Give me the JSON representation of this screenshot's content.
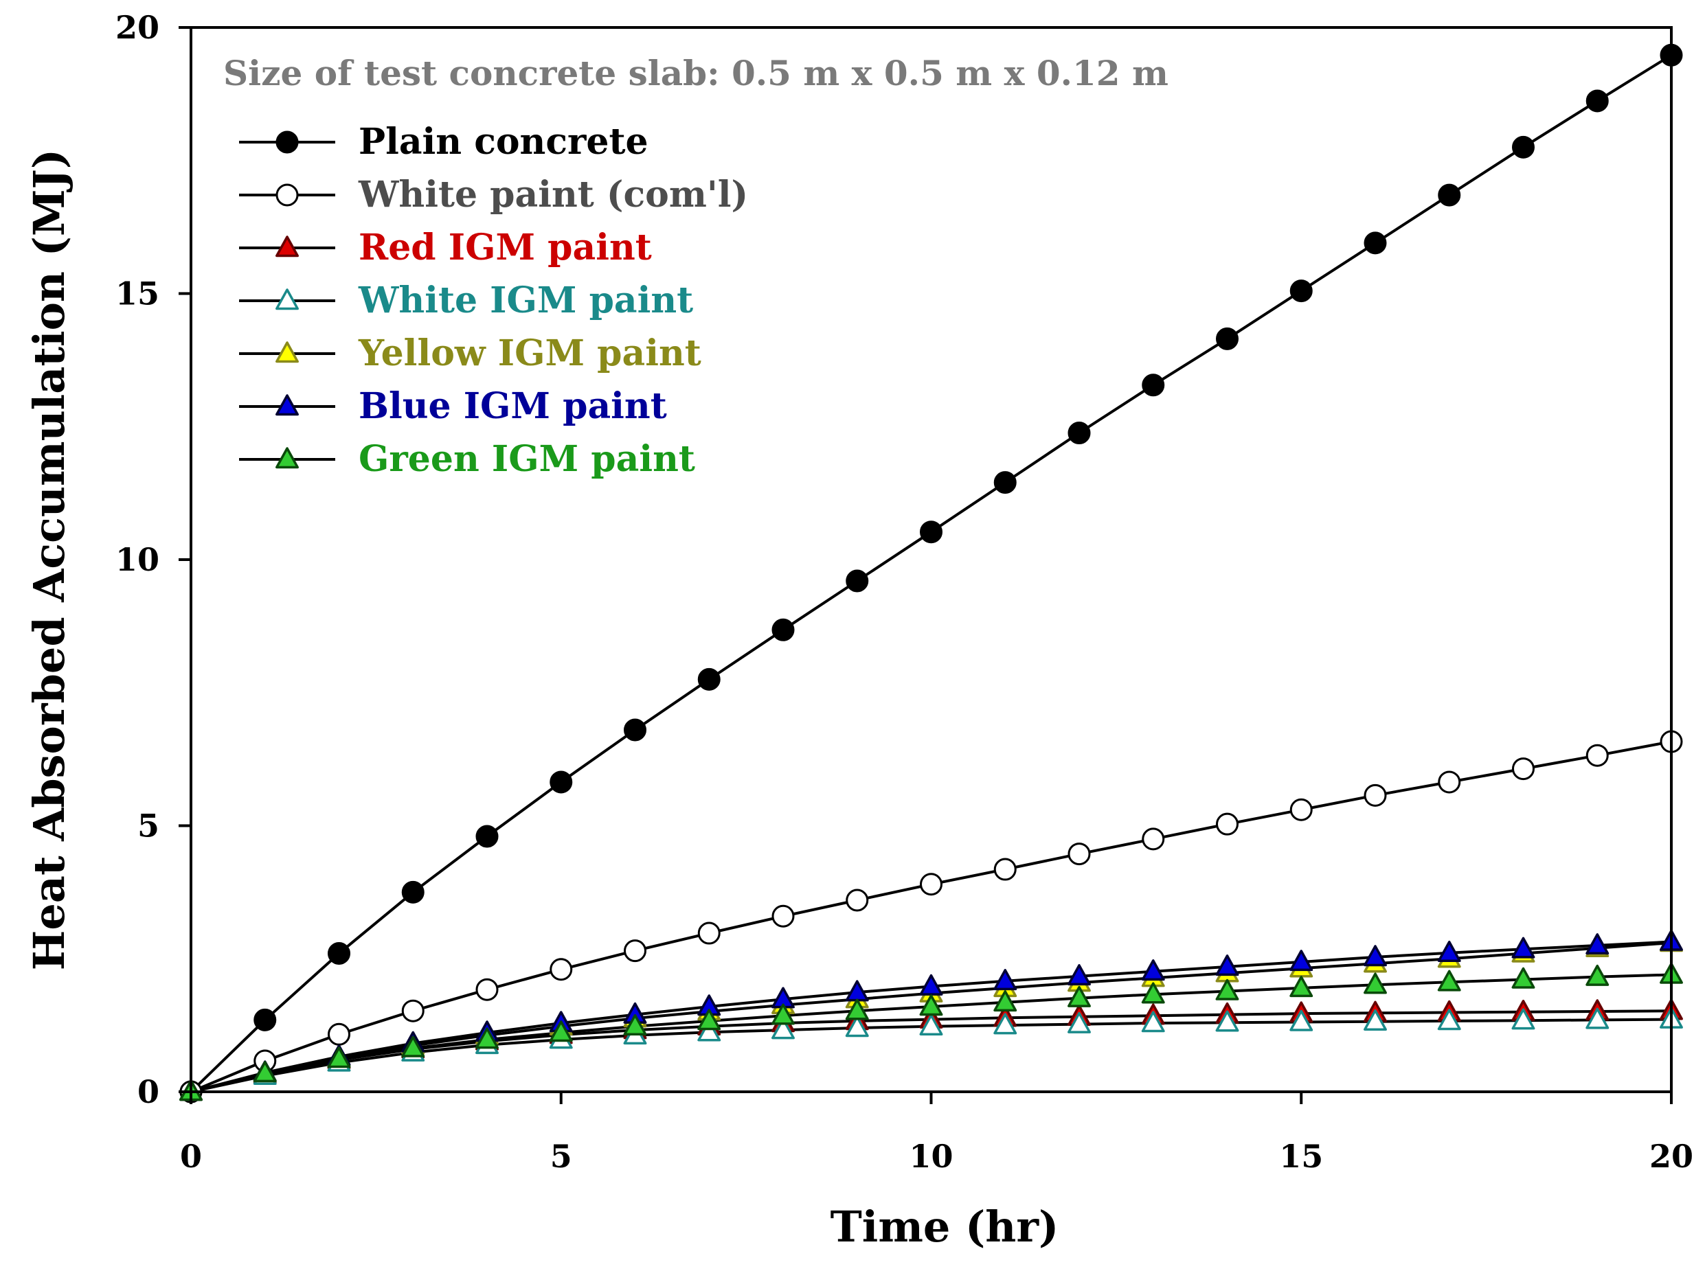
{
  "chart_data": {
    "type": "line",
    "title": "",
    "xlabel": "Time (hr)",
    "ylabel": "Heat Absorbed Accumulation (MJ)",
    "xlim": [
      0,
      20
    ],
    "ylim": [
      0,
      20
    ],
    "xticks": [
      0,
      5,
      10,
      15,
      20
    ],
    "yticks": [
      0,
      5,
      10,
      15,
      20
    ],
    "x_tick_labels": [
      "0",
      "5",
      "10",
      "15",
      "20"
    ],
    "y_tick_labels": [
      "0",
      "5",
      "10",
      "15",
      "20"
    ],
    "grid": false,
    "legend_position": "top-left",
    "annotation": "Size of test concrete slab: 0.5 m x 0.5 m x 0.12 m",
    "x": [
      0,
      1,
      2,
      3,
      4,
      5,
      6,
      7,
      8,
      9,
      10,
      11,
      12,
      13,
      14,
      15,
      16,
      17,
      18,
      19,
      20
    ],
    "series": [
      {
        "name": "Plain concrete",
        "marker": "circle",
        "fill": "#000000",
        "stroke": "#000000",
        "label_color": "#000000",
        "values": [
          0,
          1.35,
          2.6,
          3.75,
          4.8,
          5.82,
          6.8,
          7.75,
          8.68,
          9.6,
          10.52,
          11.45,
          12.38,
          13.28,
          14.15,
          15.05,
          15.95,
          16.85,
          17.75,
          18.62,
          19.48
        ]
      },
      {
        "name": "White paint (com'l)",
        "marker": "circle",
        "fill": "#ffffff",
        "stroke": "#000000",
        "label_color": "#4d4d4d",
        "values": [
          0,
          0.58,
          1.08,
          1.52,
          1.92,
          2.3,
          2.65,
          2.98,
          3.3,
          3.6,
          3.9,
          4.18,
          4.47,
          4.75,
          5.03,
          5.3,
          5.57,
          5.82,
          6.07,
          6.32,
          6.58
        ]
      },
      {
        "name": "Red IGM paint",
        "marker": "triangle",
        "fill": "#dd0000",
        "stroke": "#660000",
        "label_color": "#cc0000",
        "values": [
          0,
          0.33,
          0.6,
          0.8,
          0.95,
          1.07,
          1.16,
          1.23,
          1.29,
          1.33,
          1.36,
          1.39,
          1.41,
          1.43,
          1.45,
          1.47,
          1.48,
          1.49,
          1.5,
          1.51,
          1.52
        ]
      },
      {
        "name": "White IGM paint",
        "marker": "triangle",
        "fill": "#ffffff",
        "stroke": "#1a8a8a",
        "label_color": "#1a8a8a",
        "values": [
          0,
          0.3,
          0.55,
          0.74,
          0.88,
          0.98,
          1.06,
          1.12,
          1.16,
          1.2,
          1.23,
          1.25,
          1.27,
          1.29,
          1.3,
          1.31,
          1.32,
          1.33,
          1.34,
          1.35,
          1.36
        ]
      },
      {
        "name": "Yellow IGM paint",
        "marker": "triangle",
        "fill": "#ffff00",
        "stroke": "#8a8a1a",
        "label_color": "#8a8a1a",
        "values": [
          0,
          0.35,
          0.64,
          0.87,
          1.06,
          1.23,
          1.38,
          1.51,
          1.63,
          1.74,
          1.85,
          1.95,
          2.05,
          2.14,
          2.23,
          2.32,
          2.41,
          2.5,
          2.6,
          2.7,
          2.8
        ]
      },
      {
        "name": "Blue IGM paint",
        "marker": "triangle",
        "fill": "#0000dd",
        "stroke": "#000033",
        "label_color": "#000099",
        "values": [
          0,
          0.36,
          0.66,
          0.91,
          1.11,
          1.29,
          1.45,
          1.6,
          1.74,
          1.87,
          1.98,
          2.08,
          2.17,
          2.26,
          2.35,
          2.44,
          2.53,
          2.61,
          2.68,
          2.75,
          2.82
        ]
      },
      {
        "name": "Green IGM paint",
        "marker": "triangle",
        "fill": "#33cc33",
        "stroke": "#0a4a0a",
        "label_color": "#1a9a1a",
        "values": [
          0,
          0.35,
          0.62,
          0.82,
          0.98,
          1.11,
          1.23,
          1.33,
          1.43,
          1.52,
          1.6,
          1.68,
          1.76,
          1.83,
          1.89,
          1.95,
          2.01,
          2.06,
          2.11,
          2.16,
          2.2
        ]
      }
    ]
  }
}
